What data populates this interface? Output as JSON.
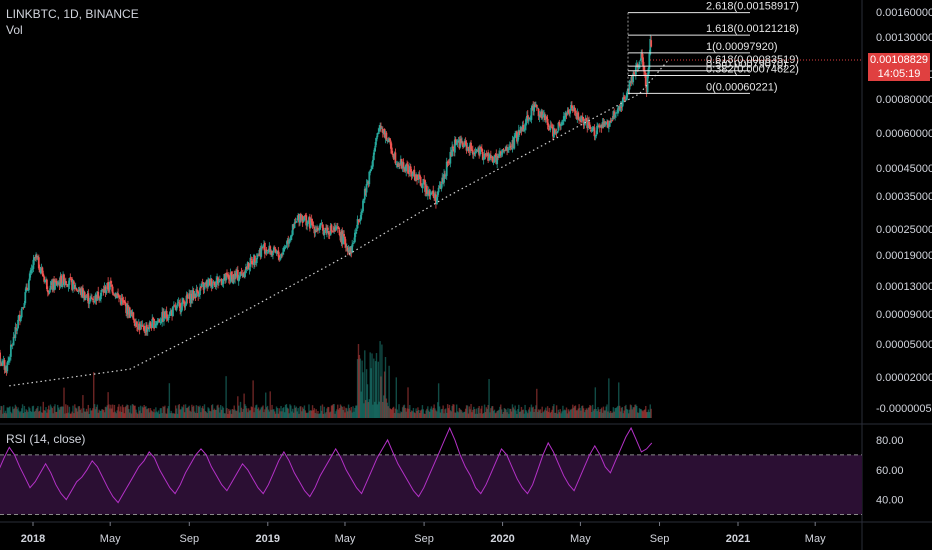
{
  "header": {
    "symbol_line": "LINKBTC, 1D, BINANCE",
    "volume_label": "Vol",
    "rsi_label": "RSI (14, close)"
  },
  "colors": {
    "background": "#000000",
    "up": "#26a69a",
    "down": "#ef5350",
    "rsi_line": "#b431c7",
    "rsi_band": "#2b0f33",
    "fib_line": "#e6e6e6",
    "price_tag": "#e04040"
  },
  "price_tag": {
    "value": "0.00108829",
    "countdown": "14:05:19"
  },
  "chart_data": [
    {
      "type": "candlestick",
      "scale": "log",
      "y_ticks": [
        "0.00160000",
        "0.00130000",
        "0.00100000",
        "0.00080000",
        "0.00060000",
        "0.00045000",
        "0.00035000",
        "0.00025000",
        "0.00019000",
        "0.00013000",
        "0.00009000",
        "0.00005000",
        "0.00002000",
        "-0.000000500"
      ],
      "x_ticks": [
        {
          "label": "2018",
          "bold": true
        },
        {
          "label": "May",
          "bold": false
        },
        {
          "label": "Sep",
          "bold": false
        },
        {
          "label": "2019",
          "bold": true
        },
        {
          "label": "May",
          "bold": false
        },
        {
          "label": "Sep",
          "bold": false
        },
        {
          "label": "2020",
          "bold": true
        },
        {
          "label": "May",
          "bold": false
        },
        {
          "label": "Sep",
          "bold": false
        },
        {
          "label": "2021",
          "bold": true
        },
        {
          "label": "May",
          "bold": false
        }
      ],
      "x_dates": [
        "2017-10",
        "2018-01",
        "2018-05",
        "2018-09",
        "2019-01",
        "2019-05",
        "2019-09",
        "2020-01",
        "2020-05",
        "2020-09",
        "2021-01",
        "2021-05"
      ],
      "price_path": [
        {
          "x": "2017-11-01",
          "y": 2.8e-05
        },
        {
          "x": "2017-11-20",
          "y": 2.2e-05
        },
        {
          "x": "2017-12-10",
          "y": 4e-05
        },
        {
          "x": "2018-01-05",
          "y": 8.5e-05
        },
        {
          "x": "2018-01-25",
          "y": 5.8e-05
        },
        {
          "x": "2018-02-20",
          "y": 6.5e-05
        },
        {
          "x": "2018-04-01",
          "y": 5e-05
        },
        {
          "x": "2018-05-01",
          "y": 6e-05
        },
        {
          "x": "2018-06-20",
          "y": 3.5e-05
        },
        {
          "x": "2018-08-10",
          "y": 4.5e-05
        },
        {
          "x": "2018-10-01",
          "y": 6.2e-05
        },
        {
          "x": "2018-11-20",
          "y": 6.8e-05
        },
        {
          "x": "2018-12-25",
          "y": 9.5e-05
        },
        {
          "x": "2019-01-20",
          "y": 8.5e-05
        },
        {
          "x": "2019-02-20",
          "y": 0.00014
        },
        {
          "x": "2019-03-15",
          "y": 0.00012
        },
        {
          "x": "2019-04-20",
          "y": 0.000115
        },
        {
          "x": "2019-05-10",
          "y": 9e-05
        },
        {
          "x": "2019-06-01",
          "y": 0.00018
        },
        {
          "x": "2019-06-25",
          "y": 0.00042
        },
        {
          "x": "2019-07-20",
          "y": 0.00027
        },
        {
          "x": "2019-08-20",
          "y": 0.00022
        },
        {
          "x": "2019-09-20",
          "y": 0.00017
        },
        {
          "x": "2019-10-20",
          "y": 0.00034
        },
        {
          "x": "2019-11-20",
          "y": 0.0003
        },
        {
          "x": "2019-12-20",
          "y": 0.00027
        },
        {
          "x": "2020-01-15",
          "y": 0.00032
        },
        {
          "x": "2020-02-20",
          "y": 0.00052
        },
        {
          "x": "2020-03-20",
          "y": 0.00038
        },
        {
          "x": "2020-04-15",
          "y": 0.0005
        },
        {
          "x": "2020-05-20",
          "y": 0.00038
        },
        {
          "x": "2020-06-15",
          "y": 0.00042
        },
        {
          "x": "2020-07-10",
          "y": 0.00058
        },
        {
          "x": "2020-07-25",
          "y": 0.0008
        },
        {
          "x": "2020-08-05",
          "y": 0.00095
        },
        {
          "x": "2020-08-12",
          "y": 0.00062
        },
        {
          "x": "2020-08-18",
          "y": 0.00115
        },
        {
          "x": "2020-08-20",
          "y": 0.001088
        }
      ],
      "curve": [
        {
          "x": "2017-11-25",
          "y": 1.8e-05
        },
        {
          "x": "2018-06-01",
          "y": 2.2e-05
        },
        {
          "x": "2018-12-01",
          "y": 4.5e-05
        },
        {
          "x": "2019-05-01",
          "y": 8.5e-05
        },
        {
          "x": "2019-10-01",
          "y": 0.00017
        },
        {
          "x": "2020-03-01",
          "y": 0.00032
        },
        {
          "x": "2020-08-01",
          "y": 0.0006
        },
        {
          "x": "2020-09-15",
          "y": 0.0009
        }
      ],
      "fibonacci": [
        {
          "label": "2.618(0.00158917)",
          "value": 0.00158917
        },
        {
          "label": "1.618(0.00121218)",
          "value": 0.00121218
        },
        {
          "label": "1(0.00097920)",
          "value": 0.0009792
        },
        {
          "label": "0.618(0.00083519)",
          "value": 0.00083519
        },
        {
          "label": "0.5(0.00079070)",
          "value": 0.0007907
        },
        {
          "label": "0.382(0.00074622)",
          "value": 0.00074622
        },
        {
          "label": "0(0.00060221)",
          "value": 0.00060221
        }
      ]
    },
    {
      "type": "line",
      "name": "RSI (14, close)",
      "y_ticks": [
        "80.00",
        "60.00",
        "40.00"
      ],
      "band": [
        30,
        70
      ],
      "values": [
        52,
        60,
        68,
        75,
        70,
        62,
        55,
        48,
        52,
        58,
        64,
        58,
        50,
        44,
        40,
        46,
        52,
        55,
        60,
        66,
        62,
        55,
        48,
        42,
        38,
        44,
        50,
        56,
        62,
        66,
        72,
        68,
        60,
        54,
        48,
        44,
        50,
        58,
        64,
        70,
        74,
        70,
        62,
        56,
        50,
        46,
        52,
        58,
        64,
        60,
        54,
        48,
        44,
        50,
        58,
        66,
        72,
        66,
        58,
        52,
        46,
        42,
        48,
        56,
        62,
        68,
        74,
        68,
        60,
        54,
        48,
        44,
        52,
        60,
        68,
        74,
        80,
        72,
        64,
        58,
        52,
        46,
        42,
        48,
        56,
        64,
        72,
        80,
        88,
        80,
        70,
        62,
        56,
        48,
        44,
        50,
        58,
        66,
        74,
        70,
        62,
        54,
        48,
        44,
        50,
        60,
        70,
        78,
        72,
        64,
        56,
        50,
        46,
        54,
        62,
        70,
        76,
        70,
        62,
        58,
        66,
        74,
        82,
        88,
        80,
        72,
        74,
        78
      ]
    }
  ]
}
